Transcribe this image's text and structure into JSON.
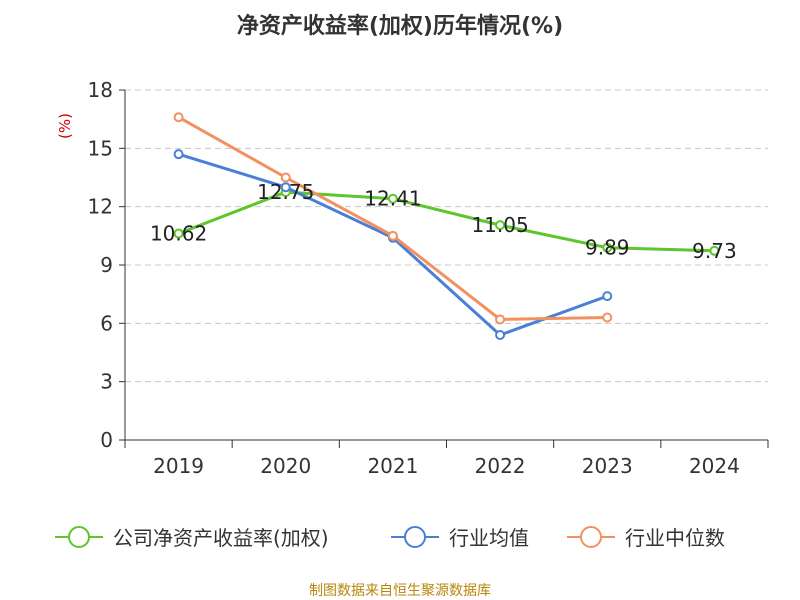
{
  "title": "净资产收益率(加权)历年情况(%)",
  "source": "制图数据来自恒生聚源数据库",
  "colors": {
    "company": "#5cc62a",
    "industry_avg": "#4a7fd6",
    "industry_median": "#f39060",
    "grid": "#c8c8c8",
    "axis": "#333333",
    "ylabel": "#cc0000"
  },
  "chart_data": {
    "type": "line",
    "ylabel": "(%)",
    "ylim": [
      0,
      18
    ],
    "yticks": [
      0,
      3,
      6,
      9,
      12,
      15,
      18
    ],
    "categories": [
      "2019",
      "2020",
      "2021",
      "2022",
      "2023",
      "2024"
    ],
    "grid": true,
    "legend_position": "bottom",
    "series": [
      {
        "name": "公司净资产收益率(加权)",
        "values": [
          10.62,
          12.75,
          12.41,
          11.05,
          9.89,
          9.73
        ],
        "labels": [
          "10.62",
          "12.75",
          "12.41",
          "11.05",
          "9.89",
          "9.73"
        ]
      },
      {
        "name": "行业均值",
        "values": [
          14.7,
          13.0,
          10.4,
          5.4,
          7.4,
          null
        ]
      },
      {
        "name": "行业中位数",
        "values": [
          16.6,
          13.5,
          10.5,
          6.2,
          6.3,
          null
        ]
      }
    ]
  }
}
